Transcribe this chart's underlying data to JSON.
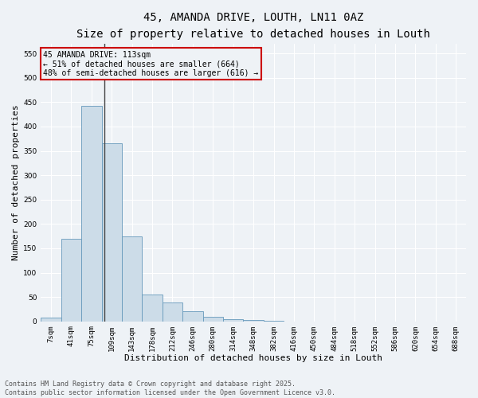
{
  "title1": "45, AMANDA DRIVE, LOUTH, LN11 0AZ",
  "title2": "Size of property relative to detached houses in Louth",
  "xlabel": "Distribution of detached houses by size in Louth",
  "ylabel": "Number of detached properties",
  "bin_labels": [
    "7sqm",
    "41sqm",
    "75sqm",
    "109sqm",
    "143sqm",
    "178sqm",
    "212sqm",
    "246sqm",
    "280sqm",
    "314sqm",
    "348sqm",
    "382sqm",
    "416sqm",
    "450sqm",
    "484sqm",
    "518sqm",
    "552sqm",
    "586sqm",
    "620sqm",
    "654sqm",
    "688sqm"
  ],
  "bar_heights": [
    7,
    170,
    443,
    365,
    175,
    55,
    38,
    20,
    10,
    5,
    2,
    1,
    0,
    0,
    0,
    0,
    0,
    0,
    0,
    0,
    0
  ],
  "bar_color": "#ccdce8",
  "bar_edge_color": "#6699bb",
  "vline_color": "#444444",
  "box_color": "#cc0000",
  "ylim": [
    0,
    570
  ],
  "yticks": [
    0,
    50,
    100,
    150,
    200,
    250,
    300,
    350,
    400,
    450,
    500,
    550
  ],
  "annotation_line1": "45 AMANDA DRIVE: 113sqm",
  "annotation_line2": "← 51% of detached houses are smaller (664)",
  "annotation_line3": "48% of semi-detached houses are larger (616) →",
  "footer_line1": "Contains HM Land Registry data © Crown copyright and database right 2025.",
  "footer_line2": "Contains public sector information licensed under the Open Government Licence v3.0.",
  "bg_color": "#eef2f6",
  "grid_color": "#ffffff",
  "title1_fontsize": 10,
  "title2_fontsize": 9,
  "axis_label_fontsize": 8,
  "tick_fontsize": 6.5,
  "ann_fontsize": 7,
  "footer_fontsize": 6
}
